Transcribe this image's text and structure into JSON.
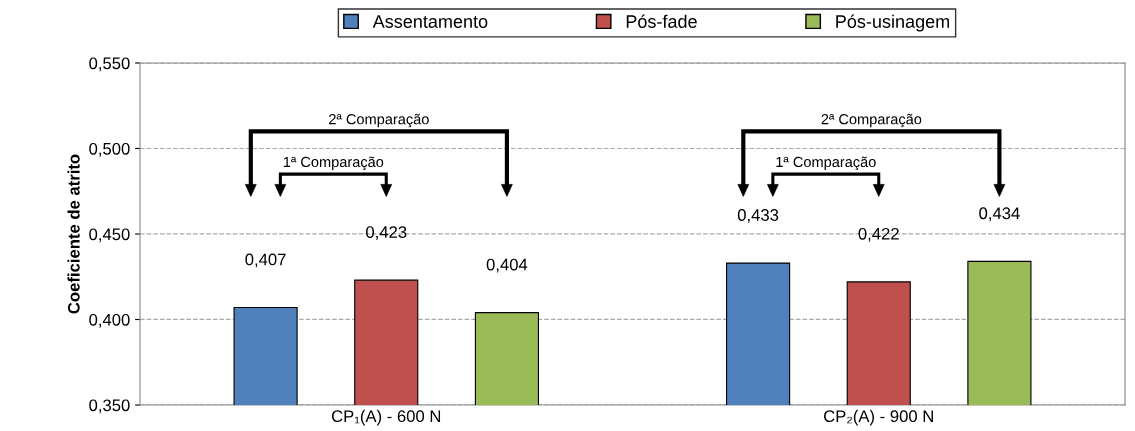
{
  "chart_data": {
    "type": "bar",
    "ylabel": "Coeficiente de atrito",
    "categories": [
      "CP₁(A) - 600 N",
      "CP₂(A) - 900 N"
    ],
    "series": [
      {
        "name": "Assentamento",
        "color": "#4f81bd",
        "values": [
          0.407,
          0.433
        ],
        "value_labels": [
          "0,407",
          "0,433"
        ]
      },
      {
        "name": "Pós-fade",
        "color": "#c0504d",
        "values": [
          0.423,
          0.422
        ],
        "value_labels": [
          "0,423",
          "0,422"
        ]
      },
      {
        "name": "Pós-usinagem",
        "color": "#9bbb59",
        "values": [
          0.404,
          0.434
        ],
        "value_labels": [
          "0,404",
          "0,434"
        ]
      }
    ],
    "ylim": [
      0.35,
      0.55
    ],
    "yticks": [
      {
        "value": 0.35,
        "label": "0,350"
      },
      {
        "value": 0.4,
        "label": "0,400"
      },
      {
        "value": 0.45,
        "label": "0,450"
      },
      {
        "value": 0.5,
        "label": "0,500"
      },
      {
        "value": 0.55,
        "label": "0,550"
      }
    ],
    "grid": "y",
    "legend": "top",
    "annotations": [
      "2ª Comparação",
      "1ª Comparação",
      "2ª Comparação",
      "1ª Comparação"
    ]
  }
}
